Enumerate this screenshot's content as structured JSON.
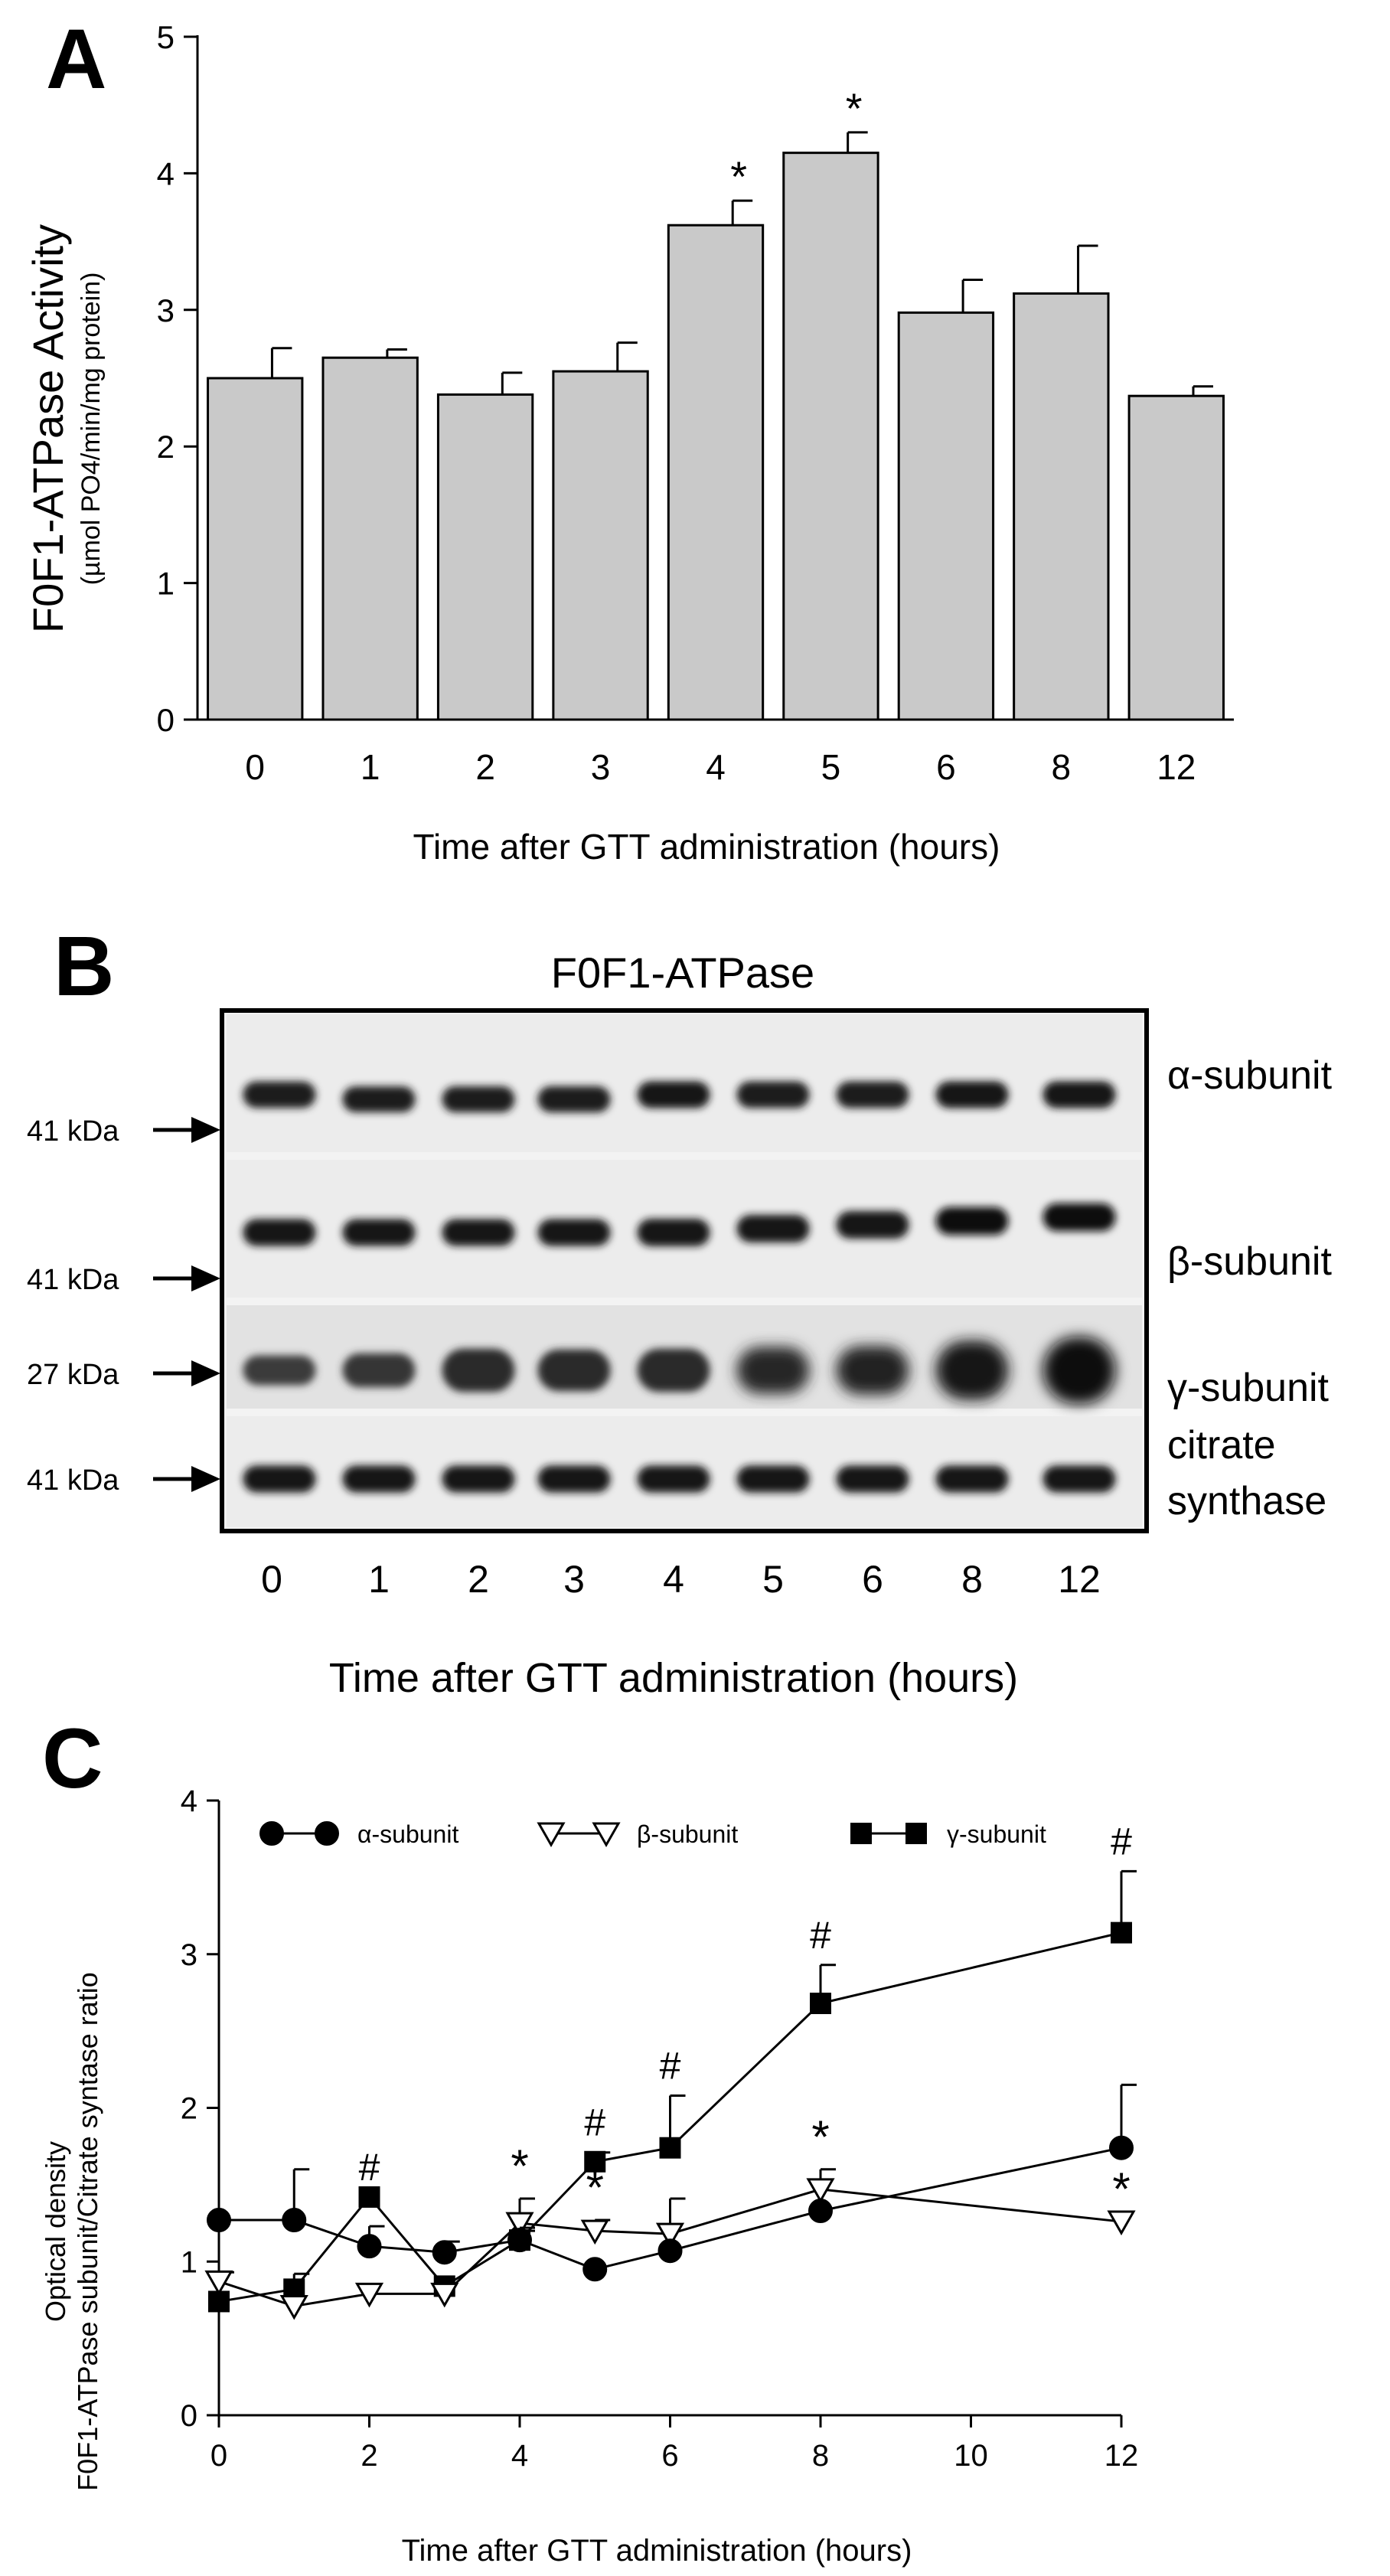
{
  "panels": {
    "a": {
      "letter": "A"
    },
    "b": {
      "letter": "B"
    },
    "c": {
      "letter": "C"
    }
  },
  "chart_data": [
    {
      "type": "bar",
      "panel": "A",
      "ylabel_main": "F0F1-ATPase Activity",
      "ylabel_sub": "(µmol PO4/min/mg protein)",
      "xlabel": "Time after GTT administration (hours)",
      "categories": [
        "0",
        "1",
        "2",
        "3",
        "4",
        "5",
        "6",
        "8",
        "12"
      ],
      "values": [
        2.5,
        2.65,
        2.38,
        2.55,
        3.62,
        4.15,
        2.98,
        3.12,
        2.37
      ],
      "errors": [
        0.22,
        0.06,
        0.16,
        0.21,
        0.18,
        0.15,
        0.24,
        0.35,
        0.07
      ],
      "significance": [
        "",
        "",
        "",
        "",
        "*",
        "*",
        "",
        "",
        ""
      ],
      "ylim": [
        0,
        5
      ],
      "yticks": [
        "0",
        "1",
        "2",
        "3",
        "4",
        "5"
      ],
      "bar_color": "#c9c9c9"
    },
    {
      "type": "western-blot",
      "panel": "B",
      "title": "F0F1-ATPase",
      "xlabel": "Time after GTT administration (hours)",
      "lanes": [
        "0",
        "1",
        "2",
        "3",
        "4",
        "5",
        "6",
        "8",
        "12"
      ],
      "rows": [
        {
          "label": "α-subunit",
          "marker": "41 kDa",
          "intensity": [
            0.75,
            0.7,
            0.72,
            0.74,
            0.78,
            0.77,
            0.76,
            0.78,
            0.78
          ]
        },
        {
          "label": "β-subunit",
          "marker": "41 kDa",
          "intensity": [
            0.8,
            0.78,
            0.78,
            0.8,
            0.85,
            0.86,
            0.86,
            0.9,
            0.9
          ]
        },
        {
          "label": "γ-subunit",
          "marker": "27 kDa",
          "intensity": [
            0.3,
            0.38,
            0.55,
            0.52,
            0.55,
            0.62,
            0.65,
            0.85,
            1.0
          ]
        },
        {
          "label": "citrate",
          "label_line2": "synthase",
          "marker": "41 kDa",
          "intensity": [
            0.8,
            0.8,
            0.8,
            0.8,
            0.8,
            0.8,
            0.8,
            0.8,
            0.8
          ]
        }
      ]
    },
    {
      "type": "line",
      "panel": "C",
      "ylabel_line1": "Optical density",
      "ylabel_line2": "F0F1-ATPase subunit/Citrate syntase ratio",
      "xlabel": "Time after GTT administration (hours)",
      "xlim": [
        0,
        12
      ],
      "ylim": [
        0,
        4
      ],
      "xticks": [
        "0",
        "2",
        "4",
        "6",
        "8",
        "10",
        "12"
      ],
      "yticks": [
        "0",
        "1",
        "2",
        "3",
        "4"
      ],
      "x": [
        0,
        1,
        2,
        3,
        4,
        5,
        6,
        8,
        12
      ],
      "series": [
        {
          "name": "α-subunit",
          "marker": "filled-circle",
          "values": [
            1.27,
            1.27,
            1.1,
            1.06,
            1.14,
            0.95,
            1.07,
            1.33,
            1.74
          ],
          "errors": [
            0,
            0.33,
            0.13,
            0.07,
            0.08,
            0,
            0,
            0,
            0.41
          ]
        },
        {
          "name": "β-subunit",
          "marker": "open-triangle-down",
          "values": [
            0.87,
            0.71,
            0.79,
            0.79,
            1.25,
            1.2,
            1.18,
            1.47,
            1.26
          ],
          "errors": [
            0.06,
            0,
            0,
            0,
            0.16,
            0.07,
            0.23,
            0.13,
            0
          ]
        },
        {
          "name": "γ-subunit",
          "marker": "filled-square",
          "values": [
            0.74,
            0.82,
            1.42,
            0.84,
            1.14,
            1.65,
            1.74,
            2.68,
            3.14
          ],
          "errors": [
            0,
            0.1,
            0,
            0,
            0.06,
            0.06,
            0.34,
            0.25,
            0.4
          ]
        }
      ],
      "annotations": [
        {
          "x": 2,
          "text": "#",
          "series": "γ-subunit"
        },
        {
          "x": 4,
          "text": "*",
          "series": "β-subunit"
        },
        {
          "x": 5,
          "text": "#",
          "series": "γ-subunit"
        },
        {
          "x": 5,
          "text": "*",
          "series": "β-subunit"
        },
        {
          "x": 6,
          "text": "#",
          "series": "γ-subunit"
        },
        {
          "x": 8,
          "text": "#",
          "series": "γ-subunit"
        },
        {
          "x": 8,
          "text": "*",
          "series": "β-subunit"
        },
        {
          "x": 12,
          "text": "#",
          "series": "γ-subunit"
        },
        {
          "x": 12,
          "text": "*",
          "series": "β-subunit"
        }
      ]
    }
  ]
}
